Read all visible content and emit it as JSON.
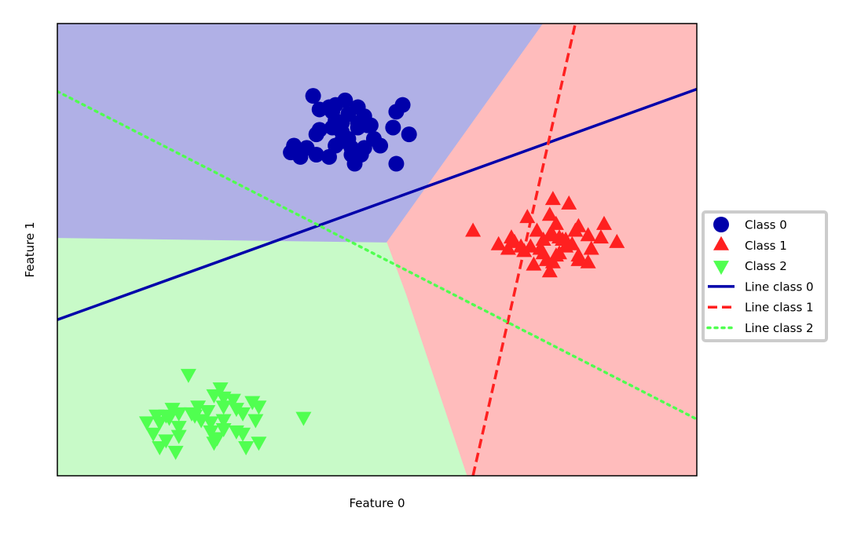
{
  "chart_data": {
    "type": "scatter",
    "title": "",
    "xlabel": "Feature 0",
    "ylabel": "Feature 1",
    "xlim": [
      -10,
      10
    ],
    "ylim": [
      -10,
      10
    ],
    "xticks": "none",
    "yticks": "none",
    "grid": false,
    "legend_position": "outside-right",
    "colors": {
      "class0": "#0000aa",
      "class1": "#ff2020",
      "class2": "#50ff50",
      "region0": "#b0b0e6",
      "region1": "#ffbcbc",
      "region2": "#c8fac8"
    },
    "regions": [
      {
        "name": "Class 0",
        "polygon": [
          [
            -10,
            10
          ],
          [
            5.2,
            10
          ],
          [
            0.3,
            0.3
          ],
          [
            -10,
            0.5
          ]
        ]
      },
      {
        "name": "Class 1",
        "polygon": [
          [
            5.2,
            10
          ],
          [
            10,
            10
          ],
          [
            10,
            -10
          ],
          [
            2.8,
            -10
          ],
          [
            0.9,
            -2
          ],
          [
            0.3,
            0.3
          ]
        ]
      },
      {
        "name": "Class 2",
        "polygon": [
          [
            -10,
            0.5
          ],
          [
            0.3,
            0.3
          ],
          [
            0.9,
            -2
          ],
          [
            2.8,
            -10
          ],
          [
            -10,
            -10
          ]
        ]
      }
    ],
    "series": [
      {
        "name": "Class 0",
        "marker": "circle",
        "points": [
          [
            -2.0,
            6.8
          ],
          [
            -1.5,
            6.3
          ],
          [
            -1.3,
            6.4
          ],
          [
            -1.0,
            6.6
          ],
          [
            -1.4,
            5.4
          ],
          [
            -1.8,
            5.3
          ],
          [
            -1.9,
            5.1
          ],
          [
            -1.1,
            5.6
          ],
          [
            -1.8,
            6.2
          ],
          [
            -1.1,
            4.8
          ],
          [
            -0.6,
            5.4
          ],
          [
            -0.2,
            5.5
          ],
          [
            -1.1,
            5.2
          ],
          [
            -0.4,
            5.9
          ],
          [
            -0.9,
            6.0
          ],
          [
            -0.6,
            6.3
          ],
          [
            -1.4,
            6.1
          ],
          [
            -1.3,
            5.7
          ],
          [
            -2.7,
            4.3
          ],
          [
            -2.6,
            4.6
          ],
          [
            -2.2,
            4.5
          ],
          [
            -1.9,
            4.2
          ],
          [
            -0.9,
            4.9
          ],
          [
            0.1,
            4.6
          ],
          [
            -0.1,
            4.9
          ],
          [
            -0.3,
            5.5
          ],
          [
            -0.7,
            3.8
          ],
          [
            -0.5,
            4.2
          ],
          [
            -0.8,
            4.5
          ],
          [
            -1.5,
            4.1
          ],
          [
            0.6,
            6.1
          ],
          [
            0.8,
            6.4
          ],
          [
            0.5,
            5.4
          ],
          [
            1.0,
            5.1
          ],
          [
            0.6,
            3.8
          ],
          [
            -2.4,
            4.1
          ],
          [
            -0.4,
            4.5
          ],
          [
            -0.8,
            4.2
          ],
          [
            -0.6,
            5.6
          ],
          [
            -1.3,
            4.6
          ]
        ],
        "values_note": ""
      },
      {
        "name": "Class 1",
        "marker": "triangle-up",
        "points": [
          [
            5.5,
            2.2
          ],
          [
            6.0,
            2.0
          ],
          [
            4.7,
            1.4
          ],
          [
            5.6,
            1.1
          ],
          [
            7.1,
            1.1
          ],
          [
            5.0,
            0.8
          ],
          [
            5.4,
            0.6
          ],
          [
            6.2,
            0.8
          ],
          [
            6.3,
            1.0
          ],
          [
            6.6,
            0.6
          ],
          [
            7.0,
            0.5
          ],
          [
            7.5,
            0.3
          ],
          [
            3.0,
            0.8
          ],
          [
            3.8,
            0.2
          ],
          [
            4.3,
            0.3
          ],
          [
            4.1,
            0.0
          ],
          [
            4.5,
            0.1
          ],
          [
            4.8,
            0.1
          ],
          [
            5.2,
            0.4
          ],
          [
            5.1,
            0.0
          ],
          [
            5.5,
            0.6
          ],
          [
            5.9,
            0.4
          ],
          [
            5.7,
            -0.2
          ],
          [
            5.3,
            -0.5
          ],
          [
            5.2,
            -0.2
          ],
          [
            5.4,
            -1.0
          ],
          [
            5.6,
            -0.3
          ],
          [
            6.3,
            -0.3
          ],
          [
            6.6,
            -0.6
          ],
          [
            6.3,
            -0.5
          ],
          [
            5.9,
            0.1
          ],
          [
            5.7,
            0.5
          ],
          [
            6.1,
            0.2
          ],
          [
            5.8,
            0.4
          ],
          [
            5.5,
            -0.6
          ],
          [
            5.4,
            1.5
          ],
          [
            4.9,
            -0.7
          ],
          [
            4.6,
            -0.1
          ],
          [
            6.7,
            0.0
          ],
          [
            4.2,
            0.5
          ]
        ],
        "values_note": ""
      },
      {
        "name": "Class 2",
        "marker": "triangle-down",
        "points": [
          [
            -5.9,
            -5.5
          ],
          [
            -4.9,
            -6.1
          ],
          [
            -5.8,
            -7.2
          ],
          [
            -6.5,
            -7.4
          ],
          [
            -7.0,
            -8.1
          ],
          [
            -6.6,
            -8.4
          ],
          [
            -6.2,
            -8.2
          ],
          [
            -5.2,
            -7.6
          ],
          [
            -5.3,
            -7.1
          ],
          [
            -4.8,
            -7.9
          ],
          [
            -4.4,
            -7.0
          ],
          [
            -4.2,
            -7.2
          ],
          [
            -4.8,
            -6.9
          ],
          [
            -4.5,
            -6.6
          ],
          [
            -4.8,
            -6.5
          ],
          [
            -5.1,
            -6.4
          ],
          [
            -6.2,
            -7.8
          ],
          [
            -5.5,
            -7.5
          ],
          [
            -5.2,
            -8.0
          ],
          [
            -4.4,
            -8.0
          ],
          [
            -4.2,
            -8.1
          ],
          [
            -3.8,
            -7.5
          ],
          [
            -2.3,
            -7.4
          ],
          [
            -3.9,
            -6.7
          ],
          [
            -3.7,
            -6.9
          ],
          [
            -4.8,
            -7.5
          ],
          [
            -7.2,
            -7.6
          ],
          [
            -6.6,
            -7.3
          ],
          [
            -6.9,
            -7.3
          ],
          [
            -6.4,
            -7.0
          ],
          [
            -6.2,
            -7.2
          ],
          [
            -5.7,
            -7.3
          ],
          [
            -6.8,
            -7.6
          ],
          [
            -5.6,
            -6.9
          ],
          [
            -3.7,
            -8.5
          ],
          [
            -6.8,
            -8.7
          ],
          [
            -4.1,
            -8.7
          ],
          [
            -6.3,
            -8.9
          ],
          [
            -5.1,
            -8.5
          ],
          [
            -5.0,
            -8.3
          ]
        ],
        "values_note": ""
      }
    ],
    "lines": [
      {
        "name": "Line class 0",
        "style": "solid",
        "points": [
          [
            -10,
            -3.1
          ],
          [
            10,
            7.1
          ]
        ]
      },
      {
        "name": "Line class 1",
        "style": "dashed",
        "points": [
          [
            3.0,
            -10
          ],
          [
            6.2,
            10
          ]
        ]
      },
      {
        "name": "Line class 2",
        "style": "dotted",
        "points": [
          [
            -10,
            7.0
          ],
          [
            10,
            -7.5
          ]
        ]
      }
    ],
    "legend": [
      {
        "label": "Class 0",
        "kind": "marker",
        "series": 0
      },
      {
        "label": "Class 1",
        "kind": "marker",
        "series": 1
      },
      {
        "label": "Class 2",
        "kind": "marker",
        "series": 2
      },
      {
        "label": "Line class 0",
        "kind": "line",
        "line": 0
      },
      {
        "label": "Line class 1",
        "kind": "line",
        "line": 1
      },
      {
        "label": "Line class 2",
        "kind": "line",
        "line": 2
      }
    ]
  }
}
